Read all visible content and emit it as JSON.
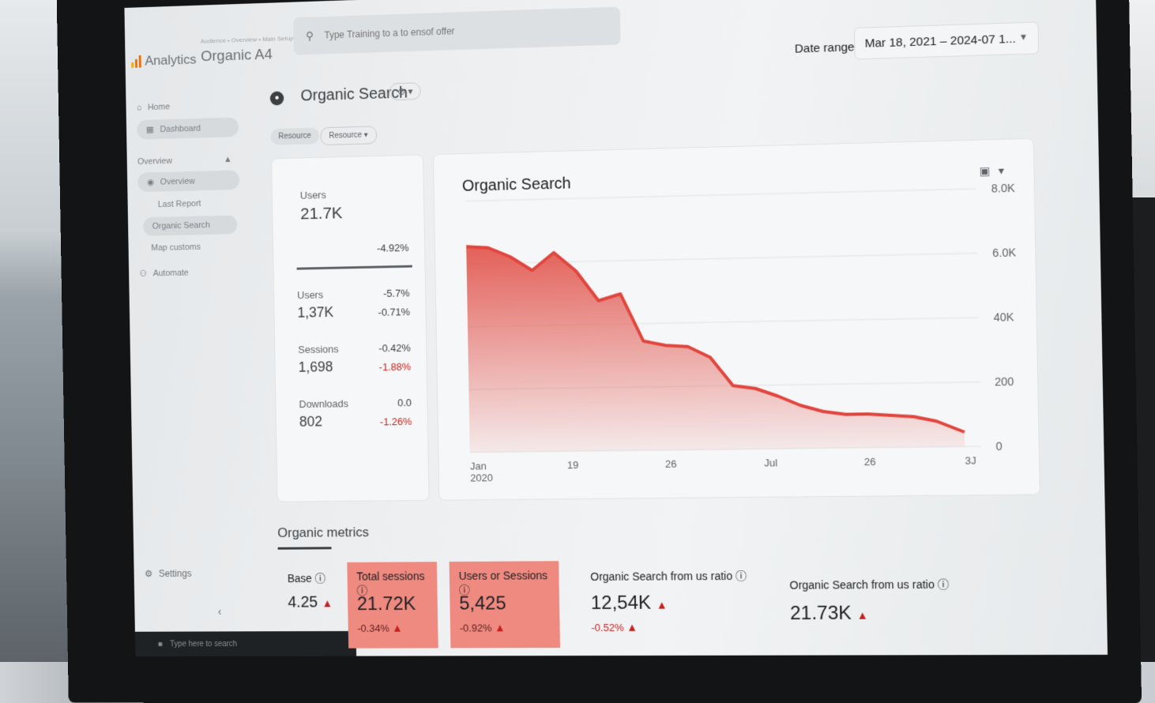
{
  "app": {
    "name": "Analytics",
    "account_subtitle": "Audience • Overview • Main Setup",
    "property": "Organic A4"
  },
  "search": {
    "placeholder": "Type Training to a to ensof offer"
  },
  "date_range": {
    "label": "Date range:",
    "value": "Mar 18, 2021 – 2024-07 1..."
  },
  "sidebar": {
    "items": [
      {
        "label": "Home",
        "icon": "home-icon"
      },
      {
        "label": "Dashboard",
        "icon": "dashboard-icon"
      },
      {
        "label": "Overview",
        "icon": "overview-icon"
      },
      {
        "label": "Last Report",
        "icon": ""
      },
      {
        "label": "Organic Search",
        "icon": ""
      },
      {
        "label": "Map customs",
        "icon": ""
      },
      {
        "label": "Automate",
        "icon": "user-icon"
      }
    ],
    "section_label": "Overview",
    "settings_label": "Settings"
  },
  "taskbar": {
    "search_placeholder": "Type here to search"
  },
  "report": {
    "title": "Organic Search",
    "chips": [
      "Resource",
      "Resource"
    ]
  },
  "summary": {
    "headline": {
      "label": "Users",
      "value": "21.7K",
      "delta": "-4.92%"
    },
    "rows": [
      {
        "label": "Users",
        "value": "1,37K",
        "delta_top": "-5.7%",
        "delta_bottom": "-0.71%"
      },
      {
        "label": "Sessions",
        "value": "1,698",
        "delta_top": "-0.42%",
        "delta_bottom": "-1.88%"
      },
      {
        "label": "Downloads",
        "value": "802",
        "delta_top": "0.0",
        "delta_bottom": "-1.26%"
      }
    ]
  },
  "chart_data": {
    "type": "area",
    "title": "Organic Search",
    "x_tick_labels": [
      "Jan\n2020",
      "19",
      "26",
      "Jul",
      "26",
      "3J"
    ],
    "y_tick_labels": [
      "8.0K",
      "6.0K",
      "40K",
      "200",
      "0"
    ],
    "series": [
      {
        "values": [
          6.55,
          6.5,
          6.2,
          5.75,
          6.3,
          5.7,
          4.75,
          4.95,
          3.45,
          3.3,
          3.25,
          2.9,
          2.0,
          1.9,
          1.65,
          1.35,
          1.15,
          1.05,
          1.05,
          1.0,
          0.95,
          0.8,
          0.45
        ]
      }
    ],
    "x": [
      0,
      0.045,
      0.09,
      0.135,
      0.18,
      0.225,
      0.27,
      0.315,
      0.36,
      0.405,
      0.45,
      0.495,
      0.54,
      0.585,
      0.63,
      0.675,
      0.72,
      0.765,
      0.81,
      0.855,
      0.9,
      0.945,
      1.0
    ],
    "ylim": [
      0,
      8
    ],
    "grid": true,
    "color": "#e0463d"
  },
  "metrics": {
    "heading": "Organic metrics",
    "tiles": [
      {
        "label": "Base",
        "value": "4.25",
        "delta": "",
        "highlight": false
      },
      {
        "label": "Total sessions",
        "value": "21.72K",
        "delta": "-0.34%",
        "highlight": true
      },
      {
        "label": "Users or Sessions",
        "value": "5,425",
        "delta": "-0.92%",
        "highlight": true
      },
      {
        "label": "Organic Search from us ratio",
        "value": "12,54K",
        "delta": "-0.52%",
        "highlight": false
      },
      {
        "label": "Organic Search from us ratio",
        "value": "21.73K",
        "delta": "",
        "highlight": false
      }
    ]
  },
  "colors": {
    "accent": "#e0463d",
    "highlight_tile": "#ef8a80"
  }
}
